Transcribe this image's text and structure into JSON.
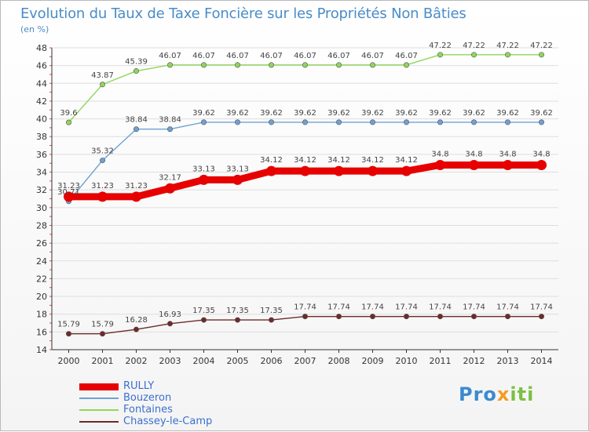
{
  "header": {
    "title": "Evolution du Taux de Taxe Foncière sur les Propriétés Non Bâties",
    "subtitle": "(en %)"
  },
  "logo": {
    "text": "Proxiti"
  },
  "chart_data": {
    "type": "line",
    "title": "Evolution du Taux de Taxe Foncière sur les Propriétés Non Bâties",
    "ylabel": "(en %)",
    "xlabel": "",
    "x": [
      "2000",
      "2001",
      "2002",
      "2003",
      "2004",
      "2005",
      "2006",
      "2007",
      "2008",
      "2009",
      "2010",
      "2011",
      "2012",
      "2013",
      "2014"
    ],
    "ylim": [
      14,
      48
    ],
    "yticks": [
      14,
      16,
      18,
      20,
      22,
      24,
      26,
      28,
      30,
      32,
      34,
      36,
      38,
      40,
      42,
      44,
      46,
      48
    ],
    "grid": true,
    "legend_position": "bottom-left",
    "series": [
      {
        "name": "RULLY",
        "color": "#e60000",
        "values": [
          31.23,
          31.23,
          31.23,
          32.17,
          33.13,
          33.13,
          34.12,
          34.12,
          34.12,
          34.12,
          34.12,
          34.8,
          34.8,
          34.8,
          34.8
        ],
        "labels": [
          "31.23",
          "31.23",
          "31.23",
          "32.17",
          "33.13",
          "33.13",
          "34.12",
          "34.12",
          "34.12",
          "34.12",
          "34.12",
          "34.8",
          "34.8",
          "34.8",
          "34.8"
        ]
      },
      {
        "name": "Bouzeron",
        "color": "#6fa1d2",
        "values": [
          30.71,
          35.32,
          38.84,
          38.84,
          39.62,
          39.62,
          39.62,
          39.62,
          39.62,
          39.62,
          39.62,
          39.62,
          39.62,
          39.62,
          39.62
        ],
        "labels": [
          "30.71",
          "35.32",
          "38.84",
          "38.84",
          "39.62",
          "39.62",
          "39.62",
          "39.62",
          "39.62",
          "39.62",
          "39.62",
          "39.62",
          "39.62",
          "39.62",
          "39.62"
        ]
      },
      {
        "name": "Fontaines",
        "color": "#8fd65a",
        "values": [
          39.6,
          43.87,
          45.39,
          46.07,
          46.07,
          46.07,
          46.07,
          46.07,
          46.07,
          46.07,
          46.07,
          47.22,
          47.22,
          47.22,
          47.22
        ],
        "labels": [
          "39.6",
          "43.87",
          "45.39",
          "46.07",
          "46.07",
          "46.07",
          "46.07",
          "46.07",
          "46.07",
          "46.07",
          "46.07",
          "47.22",
          "47.22",
          "47.22",
          "47.22"
        ]
      },
      {
        "name": "Chassey-le-Camp",
        "color": "#6e2a2a",
        "values": [
          15.79,
          15.79,
          16.28,
          16.93,
          17.35,
          17.35,
          17.35,
          17.74,
          17.74,
          17.74,
          17.74,
          17.74,
          17.74,
          17.74,
          17.74
        ],
        "labels": [
          "15.79",
          "15.79",
          "16.28",
          "16.93",
          "17.35",
          "17.35",
          "17.35",
          "17.74",
          "17.74",
          "17.74",
          "17.74",
          "17.74",
          "17.74",
          "17.74",
          "17.74"
        ]
      }
    ]
  }
}
